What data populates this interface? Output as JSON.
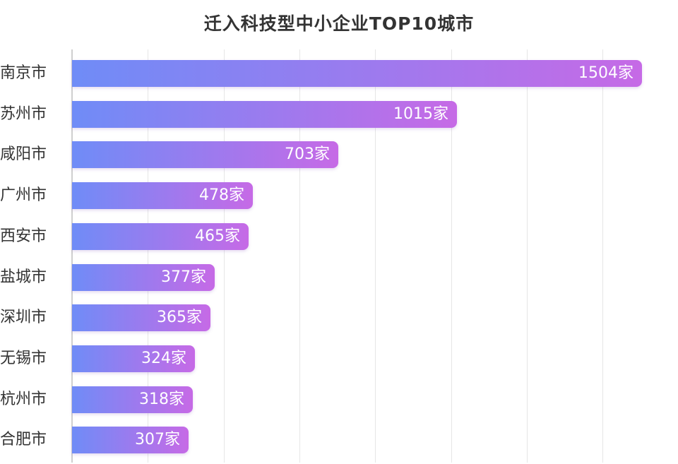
{
  "chart_data": {
    "type": "bar",
    "orientation": "horizontal",
    "title": "迁入科技型中小企业TOP10城市",
    "categories": [
      "南京市",
      "苏州市",
      "咸阳市",
      "广州市",
      "西安市",
      "盐城市",
      "深圳市",
      "无锡市",
      "杭州市",
      "合肥市"
    ],
    "values": [
      1504,
      1015,
      703,
      478,
      465,
      377,
      365,
      324,
      318,
      307
    ],
    "value_suffix": "家",
    "xlim": [
      0,
      1600
    ],
    "grid": true,
    "legend": "none",
    "colors": {
      "gradient_start": "#6f8cf7",
      "gradient_end": "#c66ae6",
      "grid": "#e6e6e6",
      "axis": "#cfcfcf"
    }
  }
}
